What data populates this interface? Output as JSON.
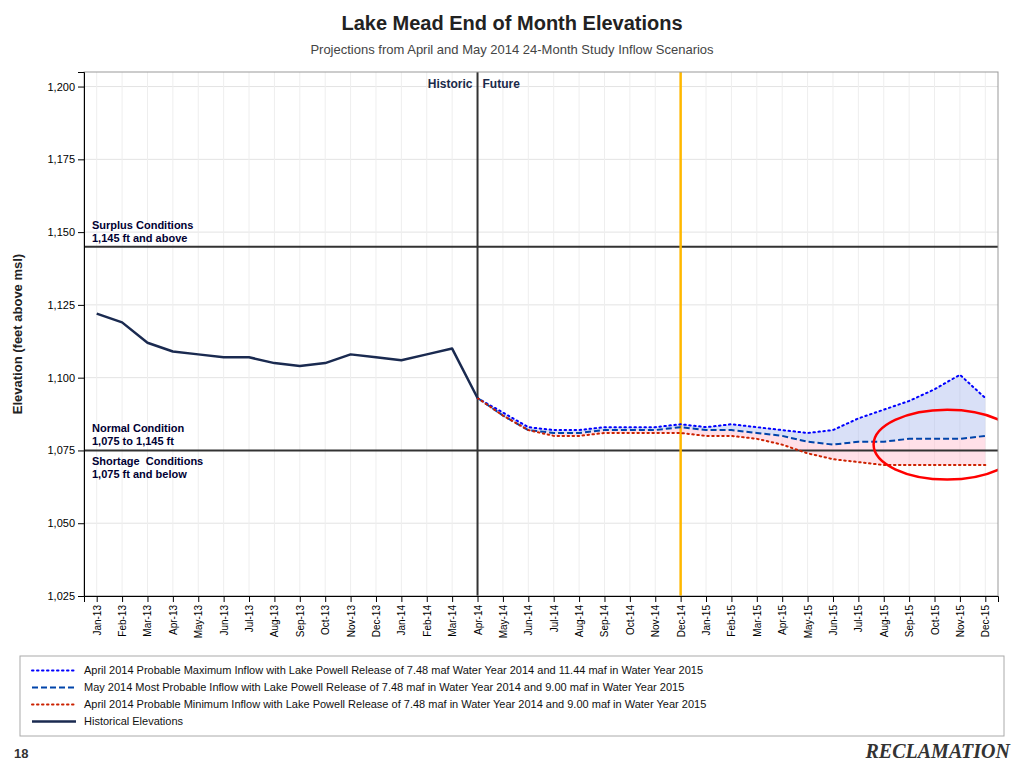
{
  "chart_data": {
    "type": "line",
    "title": "Lake Mead End of Month Elevations",
    "subtitle": "Projections from April and May 2014 24-Month Study Inflow Scenarios",
    "ylabel": "Elevation (feet above msl)",
    "categories": [
      "Jan-13",
      "Feb-13",
      "Mar-13",
      "Apr-13",
      "May-13",
      "Jun-13",
      "Jul-13",
      "Aug-13",
      "Sep-13",
      "Oct-13",
      "Nov-13",
      "Dec-13",
      "Jan-14",
      "Feb-14",
      "Mar-14",
      "Apr-14",
      "May-14",
      "Jun-14",
      "Jul-14",
      "Aug-14",
      "Sep-14",
      "Oct-14",
      "Nov-14",
      "Dec-14",
      "Jan-15",
      "Feb-15",
      "Mar-15",
      "Apr-15",
      "May-15",
      "Jun-15",
      "Jul-15",
      "Aug-15",
      "Sep-15",
      "Oct-15",
      "Nov-15",
      "Dec-15"
    ],
    "ylim": [
      1025,
      1205
    ],
    "yticks": [
      {
        "value": 1025,
        "label": "1,025"
      },
      {
        "value": 1050,
        "label": "1,050"
      },
      {
        "value": 1075,
        "label": "1,075"
      },
      {
        "value": 1100,
        "label": "1,100"
      },
      {
        "value": 1125,
        "label": "1,125"
      },
      {
        "value": 1150,
        "label": "1,150"
      },
      {
        "value": 1175,
        "label": "1,175"
      },
      {
        "value": 1200,
        "label": "1,200"
      }
    ],
    "grid": true,
    "legend": "bottom",
    "series": [
      {
        "name": "April 2014 Probable Maximum Inflow with Lake Powell Release of 7.48 maf Water Year 2014 and 11.44 maf in Water Year 2015",
        "color": "#0000ff",
        "line_style": "dotted",
        "values": [
          null,
          null,
          null,
          null,
          null,
          null,
          null,
          null,
          null,
          null,
          null,
          null,
          null,
          null,
          null,
          1093,
          1088,
          1083,
          1082,
          1082,
          1083,
          1083,
          1083,
          1084,
          1083,
          1084,
          1083,
          1082,
          1081,
          1082,
          1086,
          1089,
          1092,
          1096,
          1101,
          1093
        ]
      },
      {
        "name": "May 2014 Most Probable Inflow with Lake Powell Release of 7.48 maf in Water Year 2014 and 9.00 maf in Water Year 2015",
        "color": "#0044aa",
        "line_style": "dashed",
        "values": [
          null,
          null,
          null,
          null,
          null,
          null,
          null,
          null,
          null,
          null,
          null,
          null,
          null,
          null,
          null,
          1093,
          1087,
          1082,
          1081,
          1081,
          1082,
          1082,
          1082,
          1083,
          1082,
          1082,
          1081,
          1080,
          1078,
          1077,
          1078,
          1078,
          1079,
          1079,
          1079,
          1080
        ]
      },
      {
        "name": "April 2014 Probable Minimum Inflow with Lake Powell Release of 7.48 maf in Water Year 2014 and 9.00 maf in Water Year 2015",
        "color": "#cc2200",
        "line_style": "dotted",
        "values": [
          null,
          null,
          null,
          null,
          null,
          null,
          null,
          null,
          null,
          null,
          null,
          null,
          null,
          null,
          null,
          1093,
          1087,
          1082,
          1080,
          1080,
          1081,
          1081,
          1081,
          1081,
          1080,
          1080,
          1079,
          1077,
          1074,
          1072,
          1071,
          1070,
          1070,
          1070,
          1070,
          1070
        ]
      },
      {
        "name": "Historical Elevations",
        "color": "#1a2a50",
        "line_style": "solid",
        "values": [
          1122,
          1119,
          1112,
          1109,
          1108,
          1107,
          1107,
          1105,
          1104,
          1105,
          1108,
          1107,
          1106,
          1108,
          1110,
          1093,
          null,
          null,
          null,
          null,
          null,
          null,
          null,
          null,
          null,
          null,
          null,
          null,
          null,
          null,
          null,
          null,
          null,
          null,
          null,
          null
        ]
      }
    ],
    "bands": [
      {
        "upper": "April 2014 Probable Maximum Inflow with Lake Powell Release of 7.48 maf Water Year 2014 and 11.44 maf in Water Year 2015",
        "lower": "May 2014 Most Probable Inflow with Lake Powell Release of 7.48 maf in Water Year 2014 and 9.00 maf in Water Year 2015",
        "color": "#aabbee"
      },
      {
        "upper": "May 2014 Most Probable Inflow with Lake Powell Release of 7.48 maf in Water Year 2014 and 9.00 maf in Water Year 2015",
        "lower": "April 2014 Probable Minimum Inflow with Lake Powell Release of 7.48 maf in Water Year 2014 and 9.00 maf in Water Year 2015",
        "color": "#ffbbcc"
      }
    ],
    "thresholds": [
      {
        "value": 1145,
        "label_above": "Surplus Conditions\n1,145 ft and above"
      },
      {
        "value": 1075,
        "label_above": "Normal Condition\n1,075 to 1,145 ft",
        "label_below": "Shortage  Conditions\n1,075 ft and below"
      }
    ],
    "vlines": [
      {
        "x": "Apr-14",
        "label_left": "Historic",
        "label_right": "Future"
      },
      {
        "x": "Dec-14",
        "color": "#FFB800"
      }
    ],
    "highlight": {
      "x": 33.5,
      "y": 1077,
      "width": 5.8,
      "height": 24,
      "color": "red"
    },
    "page_number": "18",
    "footer": "RECLAMATION"
  }
}
